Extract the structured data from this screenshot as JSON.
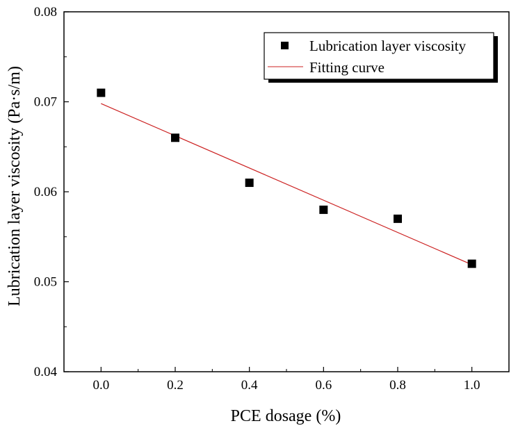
{
  "chart_data": {
    "type": "scatter",
    "xlabel": "PCE dosage (%)",
    "ylabel": "Lubrication layer viscosity (Pa·s/m)",
    "xlim": [
      -0.1,
      1.1
    ],
    "ylim": [
      0.04,
      0.08
    ],
    "x_ticks": [
      "0.0",
      "0.2",
      "0.4",
      "0.6",
      "0.8",
      "1.0"
    ],
    "y_ticks": [
      "0.04",
      "0.05",
      "0.06",
      "0.07",
      "0.08"
    ],
    "legend_position": "top-right",
    "series": [
      {
        "name": "Lubrication layer viscosity",
        "kind": "points",
        "marker": "square",
        "color": "#000000",
        "x": [
          0.0,
          0.2,
          0.4,
          0.6,
          0.8,
          1.0
        ],
        "y": [
          0.071,
          0.066,
          0.061,
          0.058,
          0.057,
          0.052
        ]
      },
      {
        "name": "Fitting curve",
        "kind": "line",
        "color": "#cc2222",
        "x": [
          0.0,
          1.0
        ],
        "y": [
          0.0698,
          0.0519
        ]
      }
    ]
  }
}
